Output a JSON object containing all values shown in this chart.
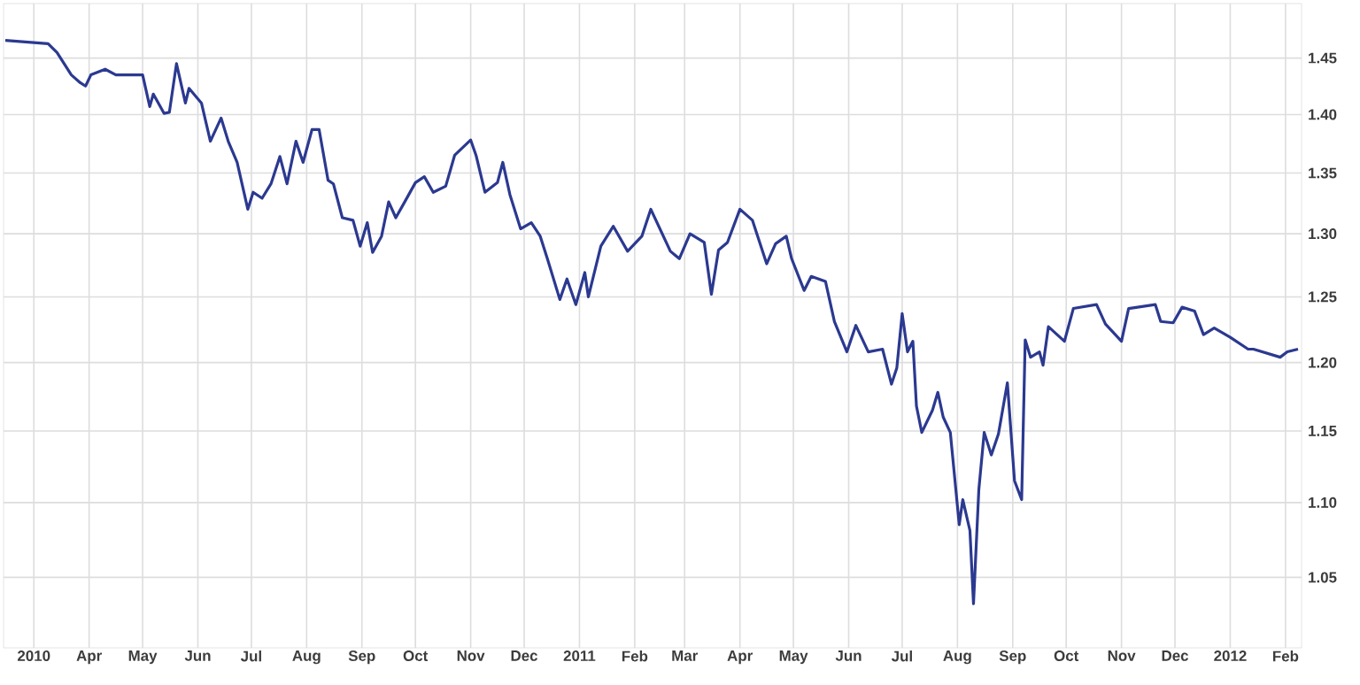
{
  "chart_data": {
    "type": "line",
    "x": [
      "2010-02-13",
      "2010-03-09",
      "2010-03-14",
      "2010-03-22",
      "2010-03-27",
      "2010-03-30",
      "2010-04-02",
      "2010-04-10",
      "2010-04-16",
      "2010-05-01",
      "2010-05-05",
      "2010-05-07",
      "2010-05-13",
      "2010-05-16",
      "2010-05-20",
      "2010-05-25",
      "2010-05-27",
      "2010-06-03",
      "2010-06-08",
      "2010-06-14",
      "2010-06-18",
      "2010-06-23",
      "2010-06-29",
      "2010-07-02",
      "2010-07-07",
      "2010-07-12",
      "2010-07-17",
      "2010-07-21",
      "2010-07-26",
      "2010-07-30",
      "2010-08-04",
      "2010-08-08",
      "2010-08-13",
      "2010-08-16",
      "2010-08-21",
      "2010-08-27",
      "2010-08-31",
      "2010-09-04",
      "2010-09-07",
      "2010-09-12",
      "2010-09-16",
      "2010-09-20",
      "2010-09-25",
      "2010-10-01",
      "2010-10-06",
      "2010-10-11",
      "2010-10-18",
      "2010-10-23",
      "2010-11-01",
      "2010-11-04",
      "2010-11-09",
      "2010-11-16",
      "2010-11-19",
      "2010-11-23",
      "2010-11-29",
      "2010-12-05",
      "2010-12-10",
      "2010-12-14",
      "2010-12-21",
      "2010-12-25",
      "2010-12-30",
      "2011-01-04",
      "2011-01-06",
      "2011-01-13",
      "2011-01-20",
      "2011-01-28",
      "2011-02-05",
      "2011-02-10",
      "2011-02-21",
      "2011-02-26",
      "2011-03-04",
      "2011-03-12",
      "2011-03-16",
      "2011-03-20",
      "2011-03-25",
      "2011-04-01",
      "2011-04-08",
      "2011-04-16",
      "2011-04-21",
      "2011-04-27",
      "2011-04-30",
      "2011-05-07",
      "2011-05-11",
      "2011-05-19",
      "2011-05-24",
      "2011-05-31",
      "2011-06-05",
      "2011-06-12",
      "2011-06-20",
      "2011-06-25",
      "2011-06-28",
      "2011-07-01",
      "2011-07-04",
      "2011-07-07",
      "2011-07-09",
      "2011-07-12",
      "2011-07-18",
      "2011-07-21",
      "2011-07-24",
      "2011-07-28",
      "2011-08-02",
      "2011-08-04",
      "2011-08-08",
      "2011-08-10",
      "2011-08-13",
      "2011-08-16",
      "2011-08-20",
      "2011-08-24",
      "2011-08-29",
      "2011-09-02",
      "2011-09-06",
      "2011-09-08",
      "2011-09-11",
      "2011-09-16",
      "2011-09-18",
      "2011-09-21",
      "2011-09-30",
      "2011-10-05",
      "2011-10-18",
      "2011-10-23",
      "2011-11-01",
      "2011-11-05",
      "2011-11-20",
      "2011-11-23",
      "2011-11-30",
      "2011-12-05",
      "2011-12-12",
      "2011-12-17",
      "2011-12-23",
      "2012-01-01",
      "2012-01-11",
      "2012-01-14",
      "2012-01-29",
      "2012-02-02",
      "2012-02-08"
    ],
    "series": [
      {
        "color": "#2b3990",
        "values": [
          1.466,
          1.463,
          1.455,
          1.435,
          1.428,
          1.425,
          1.435,
          1.44,
          1.435,
          1.435,
          1.407,
          1.418,
          1.401,
          1.402,
          1.445,
          1.41,
          1.423,
          1.41,
          1.377,
          1.397,
          1.377,
          1.359,
          1.32,
          1.334,
          1.329,
          1.341,
          1.364,
          1.341,
          1.377,
          1.359,
          1.387,
          1.387,
          1.344,
          1.341,
          1.313,
          1.311,
          1.29,
          1.309,
          1.285,
          1.298,
          1.326,
          1.313,
          1.326,
          1.342,
          1.347,
          1.334,
          1.339,
          1.365,
          1.378,
          1.365,
          1.334,
          1.342,
          1.359,
          1.332,
          1.304,
          1.309,
          1.298,
          1.28,
          1.248,
          1.264,
          1.244,
          1.269,
          1.25,
          1.29,
          1.306,
          1.286,
          1.298,
          1.32,
          1.286,
          1.28,
          1.3,
          1.293,
          1.252,
          1.287,
          1.293,
          1.32,
          1.311,
          1.276,
          1.292,
          1.298,
          1.28,
          1.255,
          1.266,
          1.262,
          1.231,
          1.208,
          1.228,
          1.208,
          1.21,
          1.184,
          1.196,
          1.237,
          1.208,
          1.216,
          1.168,
          1.149,
          1.165,
          1.178,
          1.16,
          1.149,
          1.085,
          1.102,
          1.081,
          1.033,
          1.109,
          1.149,
          1.133,
          1.148,
          1.185,
          1.115,
          1.102,
          1.217,
          1.204,
          1.208,
          1.198,
          1.227,
          1.216,
          1.241,
          1.244,
          1.229,
          1.216,
          1.241,
          1.244,
          1.231,
          1.23,
          1.242,
          1.239,
          1.221,
          1.226,
          1.219,
          1.21,
          1.21,
          1.204,
          1.208,
          1.21
        ]
      }
    ],
    "xlim": [
      "2010-02-12",
      "2012-02-10"
    ],
    "xticks": [
      {
        "value": "2010-03-01",
        "label": "2010"
      },
      {
        "value": "2010-04-01",
        "label": "Apr"
      },
      {
        "value": "2010-05-01",
        "label": "May"
      },
      {
        "value": "2010-06-01",
        "label": "Jun"
      },
      {
        "value": "2010-07-01",
        "label": "Jul"
      },
      {
        "value": "2010-08-01",
        "label": "Aug"
      },
      {
        "value": "2010-09-01",
        "label": "Sep"
      },
      {
        "value": "2010-10-01",
        "label": "Oct"
      },
      {
        "value": "2010-11-01",
        "label": "Nov"
      },
      {
        "value": "2010-12-01",
        "label": "Dec"
      },
      {
        "value": "2011-01-01",
        "label": "2011"
      },
      {
        "value": "2011-02-01",
        "label": "Feb"
      },
      {
        "value": "2011-03-01",
        "label": "Mar"
      },
      {
        "value": "2011-04-01",
        "label": "Apr"
      },
      {
        "value": "2011-05-01",
        "label": "May"
      },
      {
        "value": "2011-06-01",
        "label": "Jun"
      },
      {
        "value": "2011-07-01",
        "label": "Jul"
      },
      {
        "value": "2011-08-01",
        "label": "Aug"
      },
      {
        "value": "2011-09-01",
        "label": "Sep"
      },
      {
        "value": "2011-10-01",
        "label": "Oct"
      },
      {
        "value": "2011-11-01",
        "label": "Nov"
      },
      {
        "value": "2011-12-01",
        "label": "Dec"
      },
      {
        "value": "2012-01-01",
        "label": "2012"
      },
      {
        "value": "2012-02-01",
        "label": "Feb"
      }
    ],
    "ylim": [
      1.005,
      1.5
    ],
    "yticks": [
      {
        "value": 1.05,
        "label": "1.05"
      },
      {
        "value": 1.1,
        "label": "1.10"
      },
      {
        "value": 1.15,
        "label": "1.15"
      },
      {
        "value": 1.2,
        "label": "1.20"
      },
      {
        "value": 1.25,
        "label": "1.25"
      },
      {
        "value": 1.3,
        "label": "1.30"
      },
      {
        "value": 1.35,
        "label": "1.35"
      },
      {
        "value": 1.4,
        "label": "1.40"
      },
      {
        "value": 1.45,
        "label": "1.45"
      }
    ],
    "log": "y",
    "grid": true,
    "marker": "none",
    "line_style": "solid"
  }
}
